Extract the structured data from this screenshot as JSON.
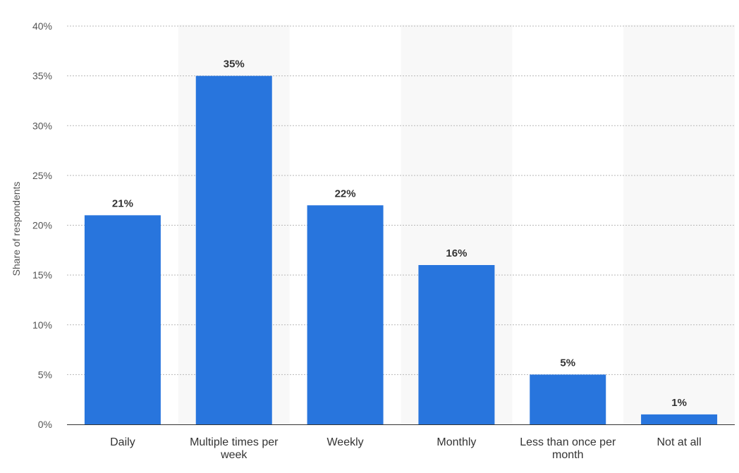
{
  "chart_data": {
    "type": "bar",
    "title": "",
    "xlabel": "",
    "ylabel": "Share of respondents",
    "ylim": [
      0,
      40
    ],
    "yticks": [
      0,
      5,
      10,
      15,
      20,
      25,
      30,
      35,
      40
    ],
    "ytick_suffix": "%",
    "grid": true,
    "bar_color": "#2875dd",
    "band_color": "#f8f8f8",
    "categories": [
      "Daily",
      "Multiple times per week",
      "Weekly",
      "Monthly",
      "Less than once per month",
      "Not at all"
    ],
    "values": [
      21,
      35,
      22,
      16,
      5,
      1
    ],
    "data_labels": [
      "21%",
      "35%",
      "22%",
      "16%",
      "5%",
      "1%"
    ]
  }
}
